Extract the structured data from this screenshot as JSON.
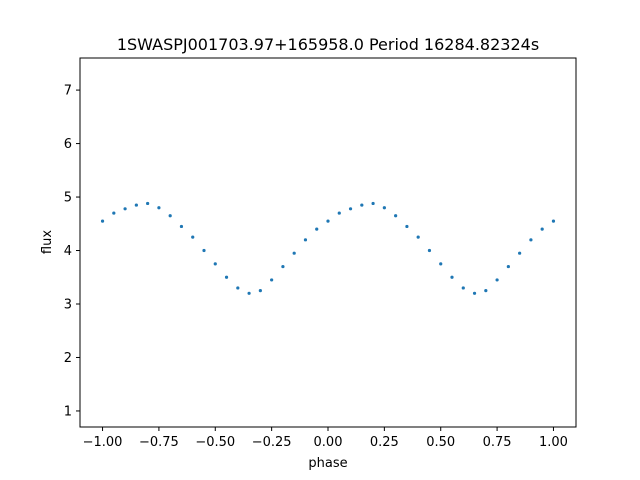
{
  "chart_data": {
    "type": "scatter",
    "title": "1SWASPJ001703.97+165958.0 Period 16284.82324s",
    "xlabel": "phase",
    "ylabel": "flux",
    "xlim": [
      -1.1,
      1.1
    ],
    "ylim": [
      0.7,
      7.6
    ],
    "xticks": [
      -1.0,
      -0.75,
      -0.5,
      -0.25,
      0.0,
      0.25,
      0.5,
      0.75,
      1.0
    ],
    "xtick_labels": [
      "−1.00",
      "−0.75",
      "−0.50",
      "−0.25",
      "0.00",
      "0.25",
      "0.50",
      "0.75",
      "1.00"
    ],
    "yticks": [
      1,
      2,
      3,
      4,
      5,
      6,
      7
    ],
    "ytick_labels": [
      "1",
      "2",
      "3",
      "4",
      "5",
      "6",
      "7"
    ],
    "grid": false,
    "marker_color": "#1f77b4",
    "series": [
      {
        "x": [
          -1.0,
          -0.95,
          -0.9,
          -0.85,
          -0.8,
          -0.75,
          -0.7,
          -0.65,
          -0.6,
          -0.55,
          -0.5,
          -0.45,
          -0.4,
          -0.35,
          -0.3,
          -0.25,
          -0.2,
          -0.15,
          -0.1,
          -0.05,
          0.0,
          0.05,
          0.1,
          0.15,
          0.2,
          0.25,
          0.3,
          0.35,
          0.4,
          0.45,
          0.5,
          0.55,
          0.6,
          0.65,
          0.7,
          0.75,
          0.8,
          0.85,
          0.9,
          0.95,
          1.0
        ],
        "y": [
          4.55,
          4.7,
          4.78,
          4.85,
          4.88,
          4.8,
          4.65,
          4.45,
          4.25,
          4.0,
          3.75,
          3.5,
          3.3,
          3.2,
          3.25,
          3.45,
          3.7,
          3.95,
          4.2,
          4.4,
          4.55,
          4.7,
          4.78,
          4.85,
          4.88,
          4.8,
          4.65,
          4.45,
          4.25,
          4.0,
          3.75,
          3.5,
          3.3,
          3.2,
          3.25,
          3.45,
          3.7,
          3.95,
          4.2,
          4.4,
          4.55
        ]
      }
    ]
  }
}
